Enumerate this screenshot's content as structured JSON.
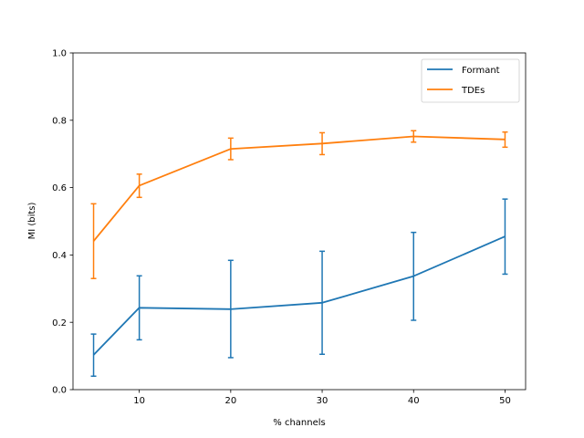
{
  "chart_data": {
    "type": "line",
    "title": "",
    "xlabel": "% channels",
    "ylabel": "MI (bits)",
    "x": [
      5,
      10,
      20,
      30,
      40,
      50
    ],
    "xlim": [
      2.75,
      52.25
    ],
    "ylim": [
      0,
      1
    ],
    "xticks": [
      10,
      20,
      30,
      40,
      50
    ],
    "yticks": [
      0.0,
      0.2,
      0.4,
      0.6,
      0.8,
      1.0
    ],
    "xtick_labels": [
      "10",
      "20",
      "30",
      "40",
      "50"
    ],
    "ytick_labels": [
      "0.0",
      "0.2",
      "0.4",
      "0.6",
      "0.8",
      "1.0"
    ],
    "grid": false,
    "legend_position": "top-right",
    "series": [
      {
        "name": "Formant",
        "color": "#1f77b4",
        "values": [
          0.103,
          0.243,
          0.239,
          0.258,
          0.337,
          0.455
        ],
        "err_low": [
          0.04,
          0.148,
          0.095,
          0.105,
          0.206,
          0.343
        ],
        "err_high": [
          0.165,
          0.338,
          0.384,
          0.411,
          0.467,
          0.566
        ]
      },
      {
        "name": "TDEs",
        "color": "#ff7f0e",
        "values": [
          0.441,
          0.606,
          0.715,
          0.731,
          0.752,
          0.743
        ],
        "err_low": [
          0.33,
          0.571,
          0.683,
          0.698,
          0.735,
          0.72
        ],
        "err_high": [
          0.552,
          0.64,
          0.747,
          0.763,
          0.769,
          0.765
        ]
      }
    ]
  }
}
